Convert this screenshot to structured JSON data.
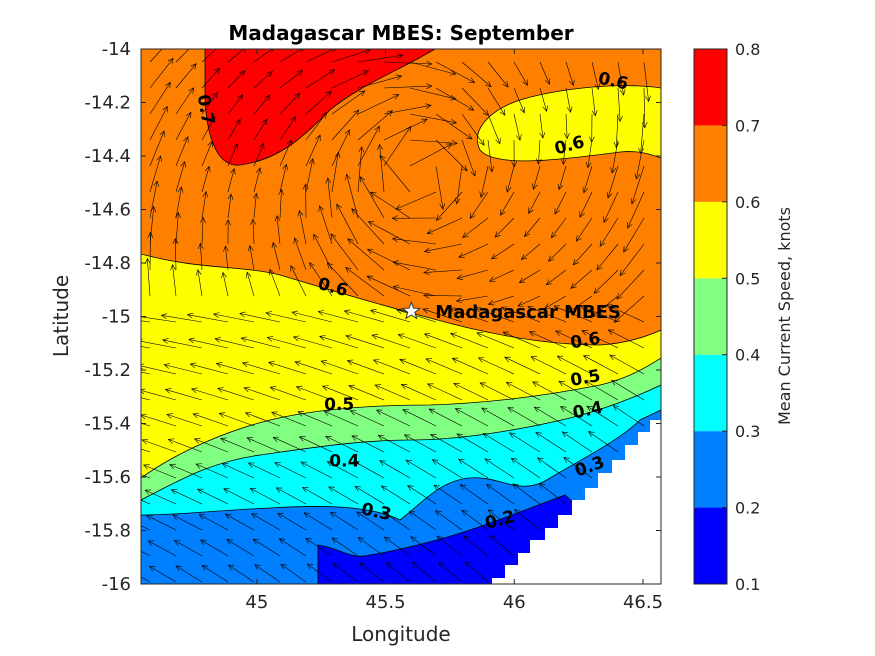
{
  "chart_data": {
    "type": "heatmap",
    "subtype": "filled-contour-with-quiver",
    "title": "Madagascar MBES: September",
    "xlabel": "Longitude",
    "ylabel": "Latitude",
    "xlim": [
      44.55,
      46.57
    ],
    "ylim": [
      -16,
      -14
    ],
    "xticks": [
      "45",
      "45.5",
      "46",
      "46.5"
    ],
    "yticks": [
      "-14",
      "-14.2",
      "-14.4",
      "-14.6",
      "-14.8",
      "-15",
      "-15.2",
      "-15.4",
      "-15.6",
      "-15.8",
      "-16"
    ],
    "colorbar": {
      "label": "Mean Current Speed, knots",
      "ticks": [
        "0.1",
        "0.2",
        "0.3",
        "0.4",
        "0.5",
        "0.6",
        "0.7",
        "0.8"
      ],
      "levels": [
        {
          "from": 0.1,
          "to": 0.2,
          "color": "#0000ff"
        },
        {
          "from": 0.2,
          "to": 0.3,
          "color": "#0080ff"
        },
        {
          "from": 0.3,
          "to": 0.4,
          "color": "#00ffff"
        },
        {
          "from": 0.4,
          "to": 0.5,
          "color": "#80ff80"
        },
        {
          "from": 0.5,
          "to": 0.6,
          "color": "#ffff00"
        },
        {
          "from": 0.6,
          "to": 0.7,
          "color": "#ff8000"
        },
        {
          "from": 0.7,
          "to": 0.8,
          "color": "#ff0000"
        }
      ]
    },
    "contour_labels": [
      {
        "text": "0.7",
        "x": 44.78,
        "y": -14.23,
        "rotate": 80
      },
      {
        "text": "0.6",
        "x": 46.38,
        "y": -14.14,
        "rotate": 12
      },
      {
        "text": "0.6",
        "x": 46.22,
        "y": -14.38,
        "rotate": -15
      },
      {
        "text": "0.6",
        "x": 45.29,
        "y": -14.91,
        "rotate": 15
      },
      {
        "text": "0.6",
        "x": 46.28,
        "y": -15.11,
        "rotate": -10
      },
      {
        "text": "0.5",
        "x": 46.28,
        "y": -15.25,
        "rotate": -10
      },
      {
        "text": "0.5",
        "x": 45.32,
        "y": -15.35,
        "rotate": 0
      },
      {
        "text": "0.4",
        "x": 46.29,
        "y": -15.37,
        "rotate": -12
      },
      {
        "text": "0.4",
        "x": 45.34,
        "y": -15.56,
        "rotate": 0
      },
      {
        "text": "0.3",
        "x": 46.3,
        "y": -15.58,
        "rotate": -20
      },
      {
        "text": "0.3",
        "x": 45.46,
        "y": -15.75,
        "rotate": 12
      },
      {
        "text": "0.2",
        "x": 45.95,
        "y": -15.78,
        "rotate": -15
      }
    ],
    "marker": {
      "label": "Madagascar MBES",
      "lon": 45.6,
      "lat": -14.98
    }
  }
}
